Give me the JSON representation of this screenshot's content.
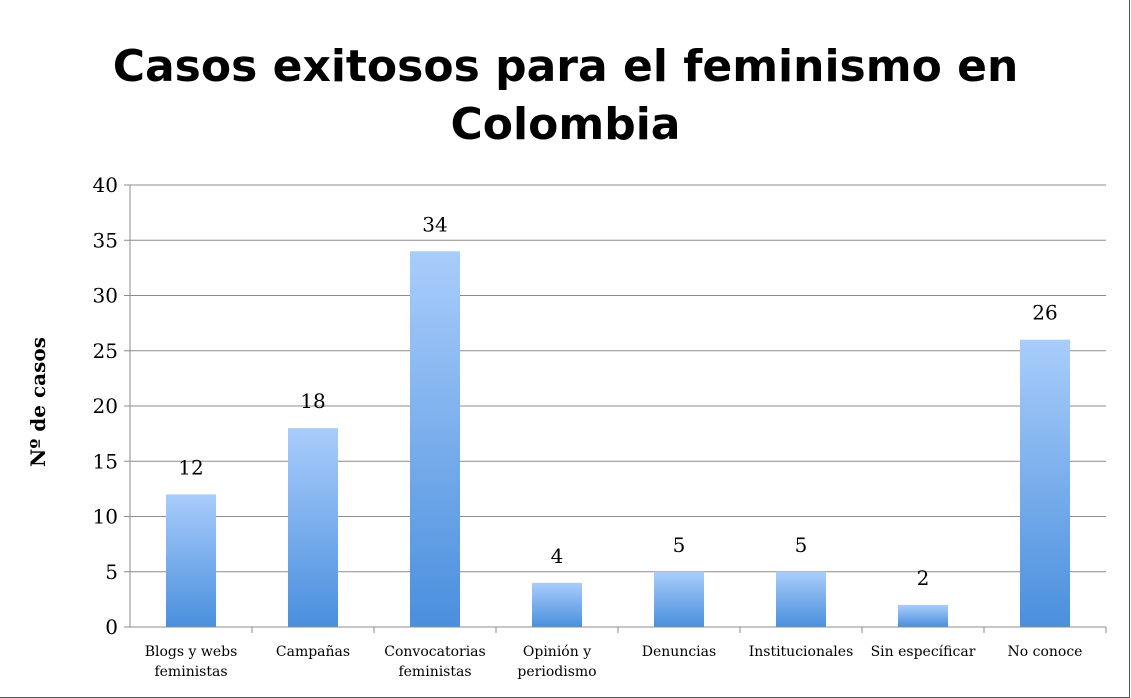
{
  "chart_data": {
    "type": "bar",
    "title": "Casos exitosos para el feminismo en Colombia",
    "xlabel": "",
    "ylabel": "Nº de casos",
    "ylim": [
      0,
      40
    ],
    "yticks": [
      0,
      5,
      10,
      15,
      20,
      25,
      30,
      35,
      40
    ],
    "grid": true,
    "legend": "none",
    "categories": [
      [
        "Blogs y webs",
        "feministas"
      ],
      [
        "Campañas"
      ],
      [
        "Convocatorias",
        "feministas"
      ],
      [
        "Opinión y",
        "periodismo"
      ],
      [
        "Denuncias"
      ],
      [
        "Institucionales"
      ],
      [
        "Sin específicar"
      ],
      [
        "No conoce"
      ]
    ],
    "values": [
      12,
      18,
      34,
      4,
      5,
      5,
      2,
      26
    ],
    "data_labels": [
      "12",
      "18",
      "34",
      "4",
      "5",
      "5",
      "2",
      "26"
    ],
    "colors": {
      "bar_top": "#a9cdfb",
      "bar_bottom": "#4a8fdd",
      "grid": "#8c8c8c",
      "axis": "#8c8c8c"
    }
  }
}
